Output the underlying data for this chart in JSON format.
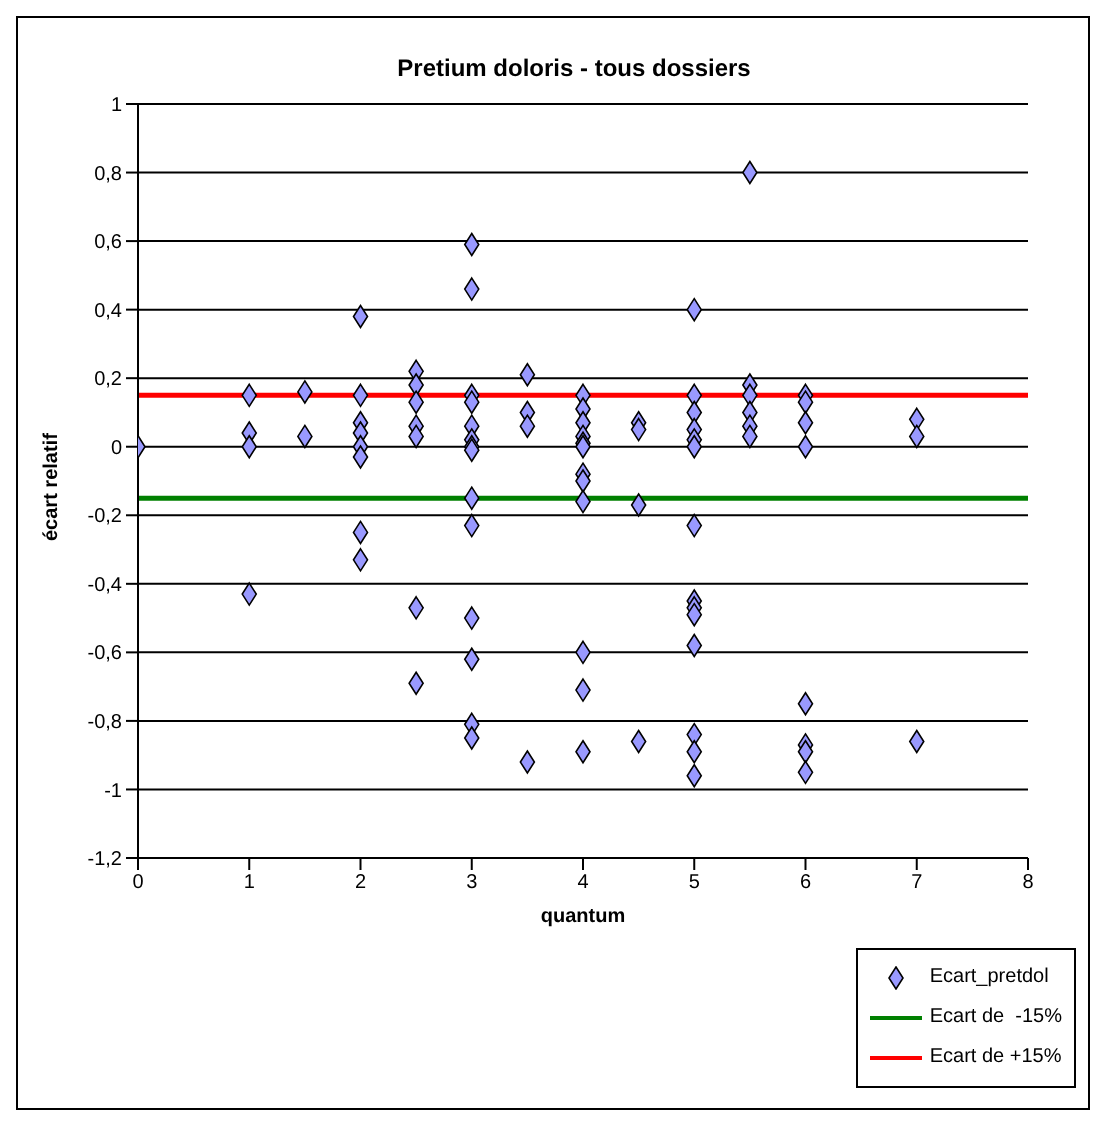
{
  "chart_data": {
    "type": "scatter",
    "title": "Pretium doloris - tous dossiers",
    "xlabel": "quantum",
    "ylabel": "écart relatif",
    "xlim": [
      0,
      8
    ],
    "xticks": [
      0,
      1,
      2,
      3,
      4,
      5,
      6,
      7,
      8
    ],
    "ylim": [
      -1.2,
      1
    ],
    "yticks": [
      {
        "value": -1.2,
        "label": "-1,2"
      },
      -1,
      {
        "value": -0.8,
        "label": "-0,8"
      },
      {
        "value": -0.6,
        "label": "-0,6"
      },
      {
        "value": -0.4,
        "label": "-0,4"
      },
      {
        "value": -0.2,
        "label": "-0,2"
      },
      0,
      {
        "value": 0.2,
        "label": "0,2"
      },
      {
        "value": 0.4,
        "label": "0,4"
      },
      {
        "value": 0.6,
        "label": "0,6"
      },
      {
        "value": 0.8,
        "label": "0,8"
      },
      1
    ],
    "grid": "y",
    "legend": "bottom right",
    "series": [
      {
        "name": "Ecart_pretdol",
        "color": "#9999ff",
        "marker": "diamond",
        "x": [
          0,
          1,
          1,
          1,
          1,
          1.5,
          1.5,
          2,
          2,
          2,
          2,
          2,
          2,
          2,
          2,
          2.5,
          2.5,
          2.5,
          2.5,
          2.5,
          2.5,
          2.5,
          3,
          3,
          3,
          3,
          3,
          3,
          3,
          3,
          3,
          3,
          3,
          3,
          3,
          3,
          3.5,
          3.5,
          3.5,
          3.5,
          4,
          4,
          4,
          4,
          4,
          4,
          4,
          4,
          4,
          4,
          4,
          4,
          4.5,
          4.5,
          4.5,
          4.5,
          5,
          5,
          5,
          5,
          5,
          5,
          5,
          5,
          5,
          5,
          5,
          5,
          5,
          5,
          5.5,
          5.5,
          5.5,
          5.5,
          5.5,
          5.5,
          6,
          6,
          6,
          6,
          6,
          6,
          6,
          6,
          7,
          7,
          7
        ],
        "values": [
          0,
          0.15,
          0.04,
          0,
          -0.43,
          0.16,
          0.03,
          0.38,
          0.15,
          0.07,
          0.04,
          0,
          -0.03,
          -0.25,
          -0.33,
          0.22,
          0.18,
          0.13,
          0.06,
          0.03,
          -0.47,
          -0.69,
          0.59,
          0.46,
          0.15,
          0.13,
          0.06,
          0.02,
          0,
          -0.01,
          -0.15,
          -0.23,
          -0.5,
          -0.62,
          -0.81,
          -0.85,
          0.21,
          0.1,
          0.06,
          -0.92,
          0.15,
          0.11,
          0.07,
          0.03,
          0.01,
          0,
          -0.08,
          -0.1,
          -0.16,
          -0.6,
          -0.71,
          -0.89,
          0.07,
          0.05,
          -0.17,
          -0.86,
          0.4,
          0.15,
          0.1,
          0.05,
          0.02,
          0,
          -0.23,
          -0.45,
          -0.47,
          -0.49,
          -0.58,
          -0.84,
          -0.89,
          -0.96,
          0.8,
          0.18,
          0.15,
          0.1,
          0.06,
          0.03,
          0.15,
          0.13,
          0.07,
          0,
          -0.75,
          -0.87,
          -0.89,
          -0.95,
          0.08,
          0.03,
          -0.86
        ]
      },
      {
        "name": "Ecart de  -15%",
        "type": "line",
        "marker": "none",
        "color": "#008000",
        "x": [
          0,
          8
        ],
        "values": [
          -0.15,
          -0.15
        ]
      },
      {
        "name": "Ecart de +15%",
        "type": "line",
        "marker": "none",
        "color": "#ff0000",
        "x": [
          0,
          8
        ],
        "values": [
          0.15,
          0.15
        ]
      }
    ]
  }
}
